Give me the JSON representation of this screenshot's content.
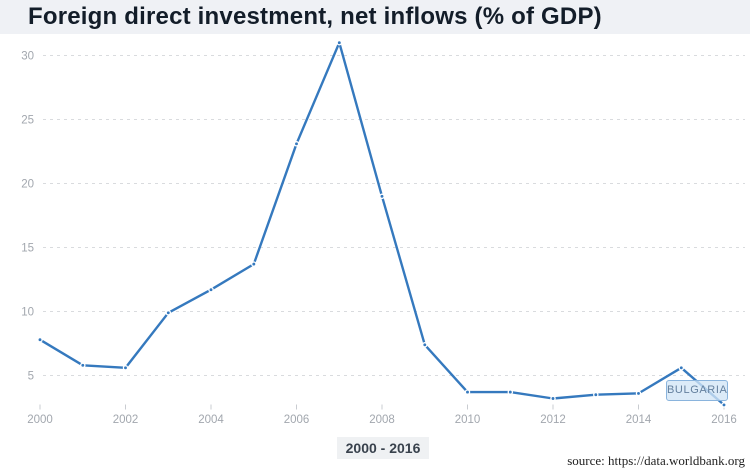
{
  "title": "Foreign direct investment, net inflows (% of GDP)",
  "tooltip": {
    "label": "BULGARIA"
  },
  "footer": {
    "range_label": "2000 - 2016",
    "source": "source: https://data.worldbank.org"
  },
  "colors": {
    "line": "#3579be",
    "marker": "#3579be",
    "grid": "#d9dbde",
    "tick": "#c9ccd1",
    "axis_text": "#a2a7ae",
    "title_text": "#131d29",
    "title_bar_bg": "#eff1f5",
    "tooltip_bg": "#d2e5f6",
    "tooltip_border": "#8ab4dd",
    "tooltip_text": "#64809e"
  },
  "chart_data": {
    "type": "line",
    "title": "Foreign direct investment, net inflows (% of GDP)",
    "xlabel": "",
    "ylabel": "",
    "x_range_label": "2000 - 2016",
    "source": "source: https://data.worldbank.org",
    "grid": "horizontal-dashed",
    "legend_position": "tooltip-near-last-point",
    "ylim": [
      0,
      32
    ],
    "y_ticks": [
      5,
      10,
      15,
      20,
      25,
      30
    ],
    "x_tick_labels": [
      "2000",
      "2002",
      "2004",
      "2006",
      "2008",
      "2010",
      "2012",
      "2014",
      "2016"
    ],
    "series": [
      {
        "name": "BULGARIA",
        "x": [
          2000,
          2001,
          2002,
          2003,
          2004,
          2005,
          2006,
          2007,
          2008,
          2009,
          2010,
          2011,
          2012,
          2013,
          2014,
          2015,
          2016
        ],
        "values": [
          7.8,
          5.8,
          5.6,
          9.9,
          11.7,
          13.7,
          23.1,
          31.0,
          19.0,
          7.4,
          3.7,
          3.7,
          3.2,
          3.5,
          3.6,
          5.6,
          2.7
        ]
      }
    ]
  }
}
